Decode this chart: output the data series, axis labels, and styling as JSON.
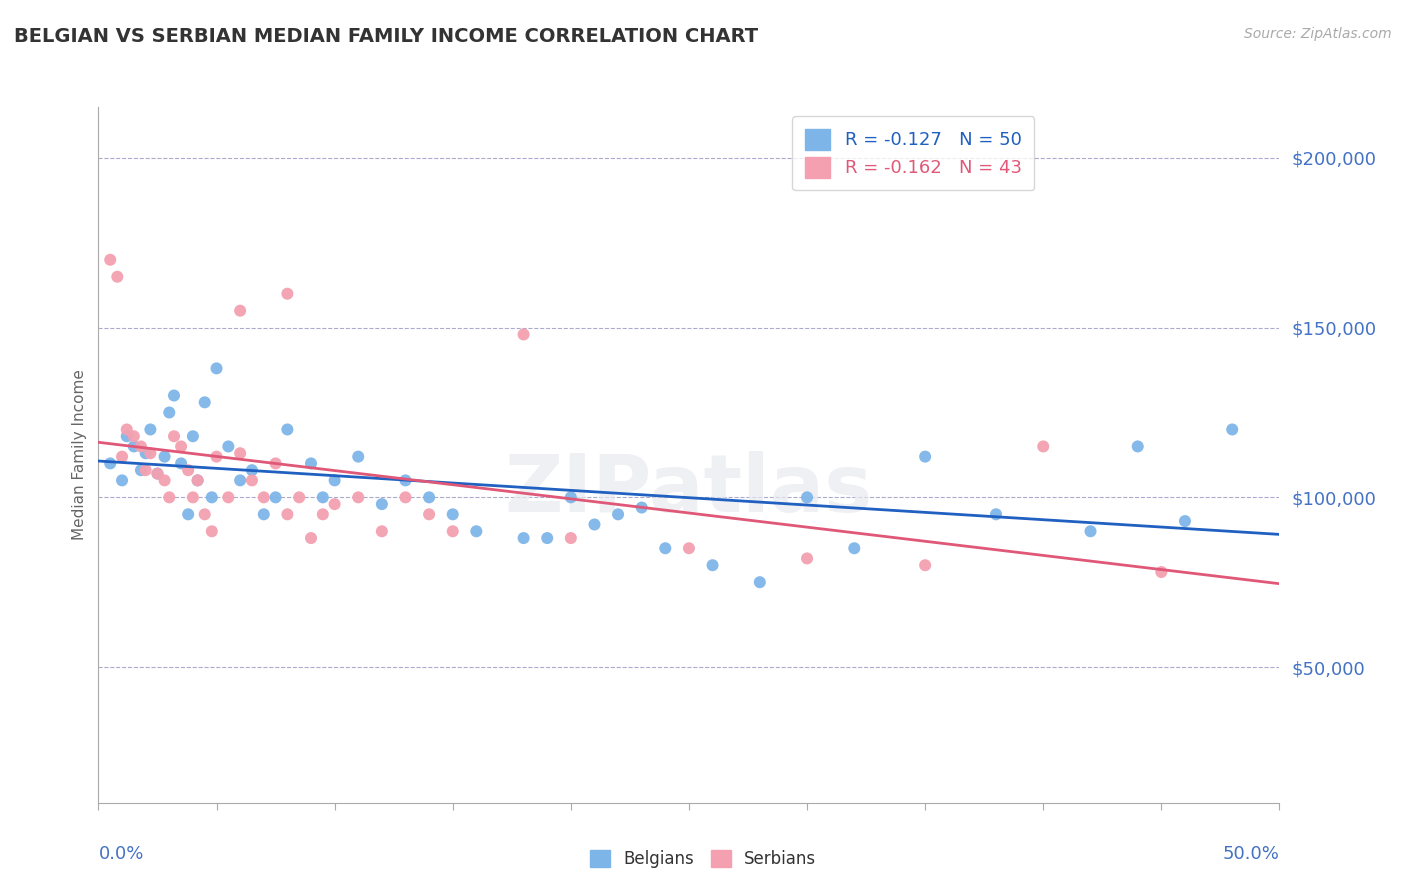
{
  "title": "BELGIAN VS SERBIAN MEDIAN FAMILY INCOME CORRELATION CHART",
  "source": "Source: ZipAtlas.com",
  "ylabel": "Median Family Income",
  "yticks": [
    50000,
    100000,
    150000,
    200000
  ],
  "ytick_labels": [
    "$50,000",
    "$100,000",
    "$150,000",
    "$200,000"
  ],
  "xlim": [
    0.0,
    0.5
  ],
  "ylim": [
    10000,
    215000
  ],
  "legend_blue_text": "R = -0.127   N = 50",
  "legend_pink_text": "R = -0.162   N = 43",
  "blue_color": "#7EB5E8",
  "pink_color": "#F4A0B0",
  "blue_line_color": "#2060C0",
  "pink_line_color": "#E05878",
  "belgians_x": [
    0.005,
    0.01,
    0.012,
    0.015,
    0.018,
    0.02,
    0.022,
    0.025,
    0.028,
    0.03,
    0.032,
    0.035,
    0.038,
    0.04,
    0.042,
    0.045,
    0.048,
    0.05,
    0.055,
    0.06,
    0.065,
    0.07,
    0.075,
    0.08,
    0.09,
    0.095,
    0.1,
    0.11,
    0.12,
    0.13,
    0.14,
    0.15,
    0.16,
    0.18,
    0.2,
    0.22,
    0.24,
    0.26,
    0.28,
    0.3,
    0.32,
    0.35,
    0.38,
    0.42,
    0.44,
    0.46,
    0.48,
    0.23,
    0.19,
    0.21
  ],
  "belgians_y": [
    110000,
    105000,
    118000,
    115000,
    108000,
    113000,
    120000,
    107000,
    112000,
    125000,
    130000,
    110000,
    95000,
    118000,
    105000,
    128000,
    100000,
    138000,
    115000,
    105000,
    108000,
    95000,
    100000,
    120000,
    110000,
    100000,
    105000,
    112000,
    98000,
    105000,
    100000,
    95000,
    90000,
    88000,
    100000,
    95000,
    85000,
    80000,
    75000,
    100000,
    85000,
    112000,
    95000,
    90000,
    115000,
    93000,
    120000,
    97000,
    88000,
    92000
  ],
  "serbians_x": [
    0.005,
    0.008,
    0.01,
    0.012,
    0.015,
    0.018,
    0.02,
    0.022,
    0.025,
    0.028,
    0.03,
    0.032,
    0.035,
    0.038,
    0.04,
    0.042,
    0.045,
    0.048,
    0.05,
    0.055,
    0.06,
    0.065,
    0.07,
    0.075,
    0.08,
    0.085,
    0.09,
    0.095,
    0.1,
    0.11,
    0.12,
    0.13,
    0.14,
    0.15,
    0.2,
    0.25,
    0.3,
    0.35,
    0.4,
    0.45,
    0.18,
    0.06,
    0.08
  ],
  "serbians_y": [
    170000,
    165000,
    112000,
    120000,
    118000,
    115000,
    108000,
    113000,
    107000,
    105000,
    100000,
    118000,
    115000,
    108000,
    100000,
    105000,
    95000,
    90000,
    112000,
    100000,
    113000,
    105000,
    100000,
    110000,
    95000,
    100000,
    88000,
    95000,
    98000,
    100000,
    90000,
    100000,
    95000,
    90000,
    88000,
    85000,
    82000,
    80000,
    115000,
    78000,
    148000,
    155000,
    160000
  ]
}
